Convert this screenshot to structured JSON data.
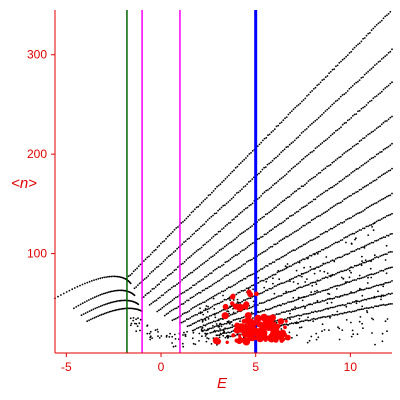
{
  "chart_data": {
    "type": "scatter",
    "title": "",
    "xlabel": "E",
    "ylabel": "<n>",
    "xlim": [
      -5.6,
      12.2
    ],
    "ylim": [
      0,
      345
    ],
    "xticks": [
      -5,
      0,
      5,
      10
    ],
    "yticks": [
      100,
      200,
      300
    ],
    "grid": false,
    "legend": "none",
    "colors": {
      "axes": "#e00000",
      "tick_labels": "#e00000",
      "points": "#000000",
      "highlight_points": "#ff0000",
      "vline_green": "#006400",
      "vline_magenta": "#ff00ff",
      "vline_blue": "#0000ff"
    },
    "vertical_lines": [
      {
        "x": -1.8,
        "color": "#006400",
        "width": 1.5
      },
      {
        "x": -1.0,
        "color": "#ff00ff",
        "width": 1.5
      },
      {
        "x": 1.0,
        "color": "#ff00ff",
        "width": 1.5
      },
      {
        "x": 5.0,
        "color": "#0000ff",
        "width": 3
      }
    ],
    "bands": [
      {
        "x": [
          -1.8,
          12.2
        ],
        "y": [
          75,
          345
        ]
      },
      {
        "x": [
          -1.4,
          12.2
        ],
        "y": [
          65,
          305
        ]
      },
      {
        "x": [
          -1.0,
          12.2
        ],
        "y": [
          55,
          272
        ]
      },
      {
        "x": [
          -0.6,
          12.2
        ],
        "y": [
          48,
          238
        ]
      },
      {
        "x": [
          -0.2,
          12.2
        ],
        "y": [
          42,
          210
        ]
      },
      {
        "x": [
          0.2,
          12.2
        ],
        "y": [
          38,
          185
        ]
      },
      {
        "x": [
          0.6,
          12.2
        ],
        "y": [
          33,
          160
        ]
      },
      {
        "x": [
          1.0,
          12.2
        ],
        "y": [
          30,
          140
        ]
      },
      {
        "x": [
          1.4,
          12.2
        ],
        "y": [
          27,
          120
        ]
      },
      {
        "x": [
          1.8,
          12.2
        ],
        "y": [
          24,
          102
        ]
      },
      {
        "x": [
          2.2,
          12.2
        ],
        "y": [
          22,
          86
        ]
      },
      {
        "x": [
          2.6,
          12.2
        ],
        "y": [
          20,
          72
        ]
      },
      {
        "x": [
          3.0,
          12.2
        ],
        "y": [
          18,
          60
        ]
      },
      {
        "x": [
          3.4,
          12.2
        ],
        "y": [
          16,
          50
        ]
      }
    ],
    "low_arcs": [
      {
        "x": [
          -5.6,
          -2.4,
          -1.6
        ],
        "y": [
          55,
          76,
          70
        ]
      },
      {
        "x": [
          -4.6,
          -2.2,
          -1.4
        ],
        "y": [
          45,
          62,
          58
        ]
      },
      {
        "x": [
          -4.2,
          -2.0,
          -1.2
        ],
        "y": [
          38,
          52,
          49
        ]
      },
      {
        "x": [
          -3.9,
          -1.9,
          -1.0
        ],
        "y": [
          32,
          44,
          42
        ]
      }
    ],
    "valley": {
      "x": [
        -1.6,
        -1.0,
        0.0,
        1.0,
        2.0,
        3.0,
        4.0
      ],
      "y": [
        30,
        22,
        12,
        10,
        14,
        20,
        22
      ]
    },
    "highlight_clusters": [
      {
        "x": 4.6,
        "y": 22,
        "count": 45
      },
      {
        "x": 5.3,
        "y": 25,
        "count": 40
      },
      {
        "x": 6.1,
        "y": 22,
        "count": 30
      },
      {
        "x": 3.3,
        "y": 18,
        "count": 4
      },
      {
        "x": 4.4,
        "y": 55,
        "count": 8
      },
      {
        "x": 4.0,
        "y": 40,
        "count": 6
      }
    ]
  }
}
